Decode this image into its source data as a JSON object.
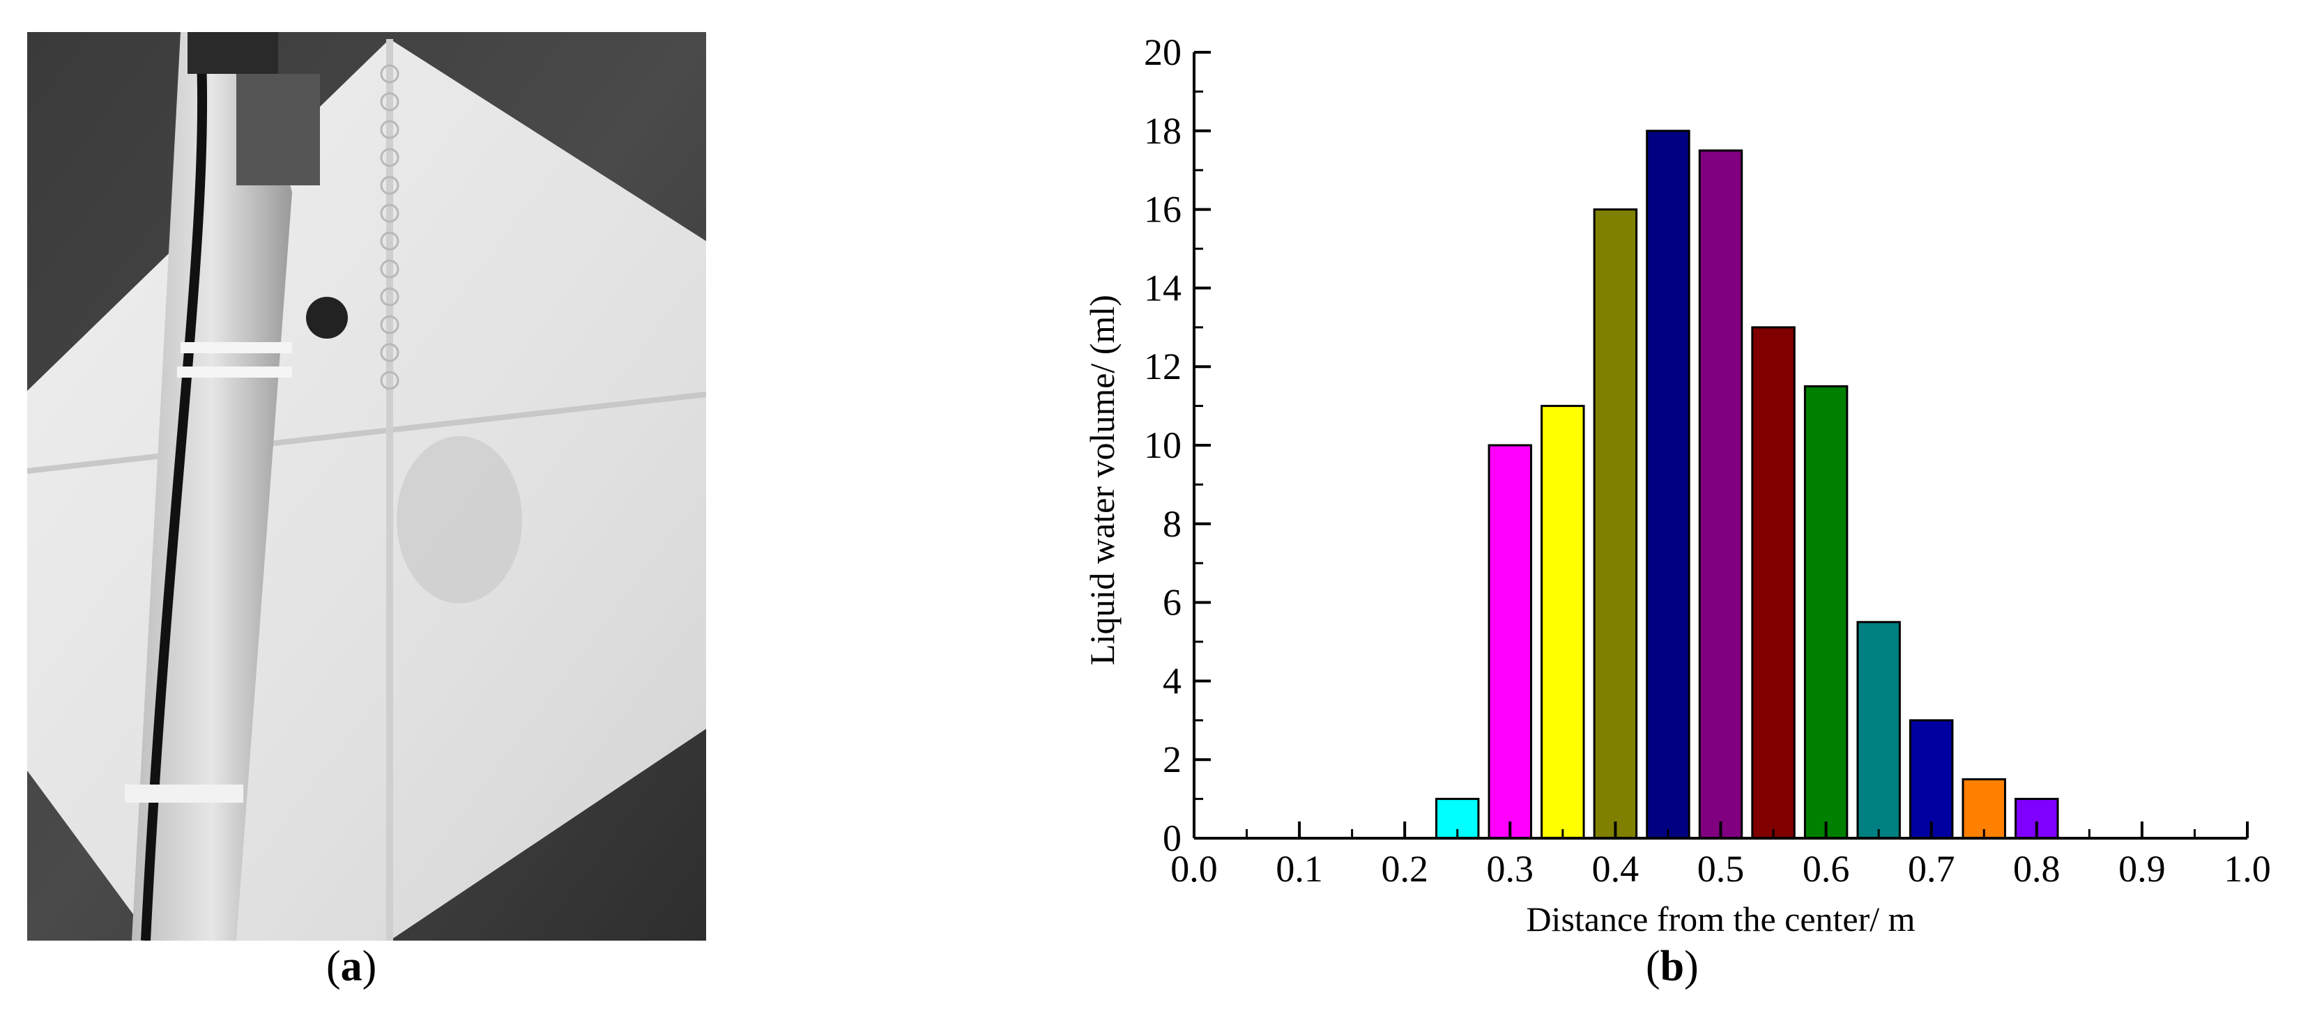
{
  "panel_a": {
    "label": "a",
    "image_description_icon": "photo-icon"
  },
  "panel_b": {
    "label": "b"
  },
  "chart_data": {
    "type": "bar",
    "title": "",
    "xlabel": "Distance from the center/ m",
    "ylabel": "Liquid water volume/ (ml)",
    "xlim": [
      0.0,
      1.0
    ],
    "ylim": [
      0,
      20
    ],
    "x_ticks": [
      "0.0",
      "0.1",
      "0.2",
      "0.3",
      "0.4",
      "0.5",
      "0.6",
      "0.7",
      "0.8",
      "0.9",
      "1.0"
    ],
    "y_ticks": [
      "0",
      "2",
      "4",
      "6",
      "8",
      "10",
      "12",
      "14",
      "16",
      "18",
      "20"
    ],
    "bar_width": 0.04,
    "grid": false,
    "legend": "none",
    "x": [
      0.25,
      0.3,
      0.35,
      0.4,
      0.45,
      0.5,
      0.55,
      0.6,
      0.65,
      0.7,
      0.75,
      0.8
    ],
    "values": [
      1,
      10,
      11,
      16,
      18,
      17.5,
      13,
      11.5,
      5.5,
      3,
      1.5,
      1
    ],
    "colors": [
      "#00ffff",
      "#ff00ff",
      "#ffff00",
      "#808000",
      "#000080",
      "#800080",
      "#800000",
      "#008000",
      "#008080",
      "#0000a0",
      "#ff8000",
      "#8000ff"
    ]
  }
}
